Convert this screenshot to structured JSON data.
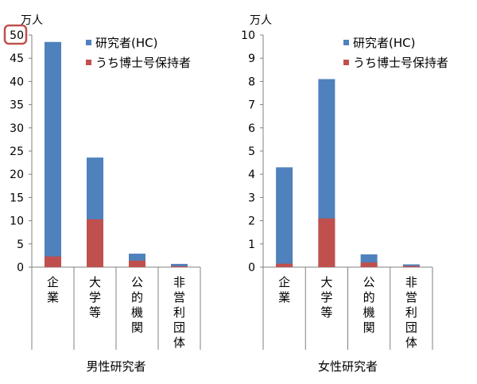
{
  "charts": [
    {
      "type": "bar",
      "stacked": true,
      "unit": "万人",
      "title": "男性研究者",
      "categories": [
        "企業",
        "大学等",
        "公的機関",
        "非営利団体"
      ],
      "series": [
        {
          "name": "研究者(HC)",
          "values": [
            48.5,
            23.6,
            2.9,
            0.7
          ],
          "color": "#4f81bd"
        },
        {
          "name": "うち博士号保持者",
          "values": [
            2.3,
            10.3,
            1.4,
            0.2
          ],
          "color": "#c0504d"
        }
      ],
      "ylim": [
        0,
        50
      ],
      "yticks": [
        "0",
        "5",
        "10",
        "15",
        "20",
        "25",
        "30",
        "35",
        "40",
        "45",
        "50"
      ],
      "highlight_tick": "50",
      "highlight_color": "#c0504d",
      "legend_position": "top-right",
      "grid": false
    },
    {
      "type": "bar",
      "stacked": true,
      "unit": "万人",
      "title": "女性研究者",
      "categories": [
        "企業",
        "大学等",
        "公的機関",
        "非営利団体"
      ],
      "series": [
        {
          "name": "研究者(HC)",
          "values": [
            4.3,
            8.1,
            0.55,
            0.12
          ],
          "color": "#4f81bd"
        },
        {
          "name": "うち博士号保持者",
          "values": [
            0.15,
            2.1,
            0.2,
            0.05
          ],
          "color": "#c0504d"
        }
      ],
      "ylim": [
        0,
        10
      ],
      "yticks": [
        "0",
        "1",
        "2",
        "3",
        "4",
        "5",
        "6",
        "7",
        "8",
        "9",
        "10"
      ],
      "legend_position": "top-right",
      "grid": false
    }
  ]
}
